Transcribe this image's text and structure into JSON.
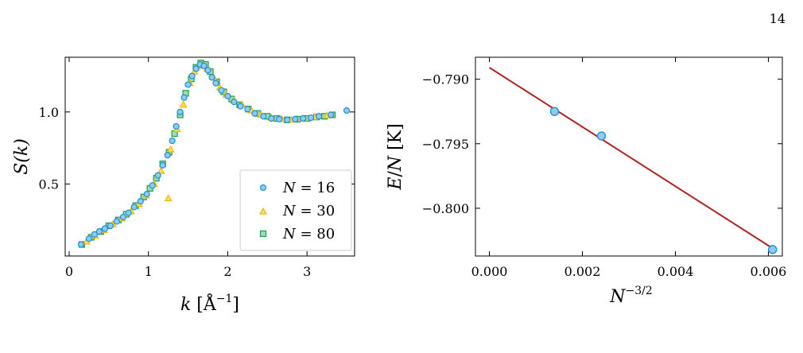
{
  "page": {
    "number": "14"
  },
  "colors": {
    "n16_fill": "#8ecbf0",
    "n16_edge": "#1f8fd6",
    "n30_fill": "#ffe066",
    "n30_edge": "#f2b800",
    "n80_fill": "#9fdcb0",
    "n80_edge": "#1f9d50",
    "fit_line": "#b22222"
  },
  "chart_data": [
    {
      "type": "scatter",
      "xlabel": "k [Å⁻¹]",
      "ylabel": "S(k)",
      "xlim": [
        -0.05,
        3.6
      ],
      "ylim": [
        0.0,
        1.38
      ],
      "xticks": [
        0,
        1,
        2,
        3
      ],
      "yticks": [
        0.5,
        1.0
      ],
      "ytick_labels": [
        "0.5",
        "1.0"
      ],
      "legend_position": "lower-right",
      "series": [
        {
          "name": "N = 16",
          "marker": "circle",
          "points": [
            [
              0.15,
              0.08
            ],
            [
              0.25,
              0.12
            ],
            [
              0.32,
              0.15
            ],
            [
              0.38,
              0.17
            ],
            [
              0.45,
              0.19
            ],
            [
              0.52,
              0.21
            ],
            [
              0.6,
              0.24
            ],
            [
              0.68,
              0.27
            ],
            [
              0.75,
              0.3
            ],
            [
              0.82,
              0.34
            ],
            [
              0.9,
              0.38
            ],
            [
              0.98,
              0.43
            ],
            [
              1.05,
              0.49
            ],
            [
              1.12,
              0.56
            ],
            [
              1.18,
              0.63
            ],
            [
              1.24,
              0.7
            ],
            [
              1.3,
              0.8
            ],
            [
              1.35,
              0.9
            ],
            [
              1.4,
              1.0
            ],
            [
              1.45,
              1.1
            ],
            [
              1.5,
              1.19
            ],
            [
              1.55,
              1.25
            ],
            [
              1.6,
              1.3
            ],
            [
              1.65,
              1.33
            ],
            [
              1.7,
              1.32
            ],
            [
              1.75,
              1.29
            ],
            [
              1.8,
              1.24
            ],
            [
              1.85,
              1.2
            ],
            [
              1.92,
              1.15
            ],
            [
              2.0,
              1.11
            ],
            [
              2.08,
              1.07
            ],
            [
              2.16,
              1.04
            ],
            [
              2.25,
              1.02
            ],
            [
              2.34,
              0.99
            ],
            [
              2.45,
              0.97
            ],
            [
              2.55,
              0.955
            ],
            [
              2.65,
              0.95
            ],
            [
              2.75,
              0.945
            ],
            [
              2.85,
              0.95
            ],
            [
              2.95,
              0.955
            ],
            [
              3.05,
              0.96
            ],
            [
              3.15,
              0.97
            ],
            [
              3.3,
              0.98
            ],
            [
              3.5,
              1.01
            ]
          ]
        },
        {
          "name": "N = 30",
          "marker": "triangle",
          "points": [
            [
              0.22,
              0.1
            ],
            [
              0.33,
              0.14
            ],
            [
              0.44,
              0.18
            ],
            [
              0.55,
              0.22
            ],
            [
              0.66,
              0.26
            ],
            [
              0.78,
              0.31
            ],
            [
              0.88,
              0.36
            ],
            [
              0.97,
              0.42
            ],
            [
              1.07,
              0.5
            ],
            [
              1.16,
              0.59
            ],
            [
              1.25,
              0.4
            ],
            [
              1.28,
              0.74
            ],
            [
              1.36,
              0.88
            ],
            [
              1.44,
              1.05
            ],
            [
              1.52,
              1.2
            ],
            [
              1.58,
              1.28
            ],
            [
              1.63,
              1.32
            ],
            [
              1.68,
              1.33
            ],
            [
              1.74,
              1.3
            ],
            [
              1.82,
              1.24
            ],
            [
              1.9,
              1.17
            ],
            [
              1.98,
              1.12
            ],
            [
              2.08,
              1.08
            ],
            [
              2.18,
              1.05
            ],
            [
              2.3,
              1.01
            ],
            [
              2.42,
              0.98
            ],
            [
              2.55,
              0.96
            ],
            [
              2.68,
              0.95
            ],
            [
              2.8,
              0.945
            ],
            [
              2.95,
              0.955
            ],
            [
              3.1,
              0.965
            ],
            [
              3.25,
              0.975
            ]
          ]
        },
        {
          "name": "N = 80",
          "marker": "square",
          "points": [
            [
              0.16,
              0.08
            ],
            [
              0.28,
              0.13
            ],
            [
              0.4,
              0.17
            ],
            [
              0.5,
              0.21
            ],
            [
              0.62,
              0.25
            ],
            [
              0.72,
              0.29
            ],
            [
              0.84,
              0.35
            ],
            [
              0.94,
              0.41
            ],
            [
              1.02,
              0.47
            ],
            [
              1.1,
              0.54
            ],
            [
              1.18,
              0.64
            ],
            [
              1.26,
              0.72
            ],
            [
              1.33,
              0.85
            ],
            [
              1.4,
              0.98
            ],
            [
              1.47,
              1.13
            ],
            [
              1.54,
              1.23
            ],
            [
              1.6,
              1.31
            ],
            [
              1.66,
              1.34
            ],
            [
              1.72,
              1.33
            ],
            [
              1.78,
              1.28
            ],
            [
              1.86,
              1.21
            ],
            [
              1.95,
              1.14
            ],
            [
              2.05,
              1.09
            ],
            [
              2.15,
              1.05
            ],
            [
              2.26,
              1.02
            ],
            [
              2.38,
              0.99
            ],
            [
              2.5,
              0.97
            ],
            [
              2.62,
              0.955
            ],
            [
              2.75,
              0.945
            ],
            [
              2.88,
              0.95
            ],
            [
              3.0,
              0.955
            ],
            [
              3.12,
              0.965
            ],
            [
              3.22,
              0.97
            ],
            [
              3.32,
              0.98
            ]
          ]
        }
      ]
    },
    {
      "type": "scatter",
      "xlabel": "N^{-3/2}",
      "ylabel": "E/N [K]",
      "xlim": [
        -0.0003,
        0.0063
      ],
      "ylim": [
        -0.8037,
        -0.7883
      ],
      "xticks": [
        0.0,
        0.002,
        0.004,
        0.006
      ],
      "xtick_labels": [
        "0.000",
        "0.002",
        "0.004",
        "0.006"
      ],
      "yticks": [
        -0.79,
        -0.795,
        -0.8
      ],
      "ytick_labels": [
        "−0.790",
        "−0.795",
        "−0.800"
      ],
      "points": [
        [
          0.0014,
          -0.7925
        ],
        [
          0.00241,
          -0.7944
        ],
        [
          0.00609,
          -0.8032
        ]
      ],
      "fit_line": [
        [
          0.0,
          -0.7891
        ],
        [
          0.00609,
          -0.8031
        ]
      ]
    }
  ]
}
